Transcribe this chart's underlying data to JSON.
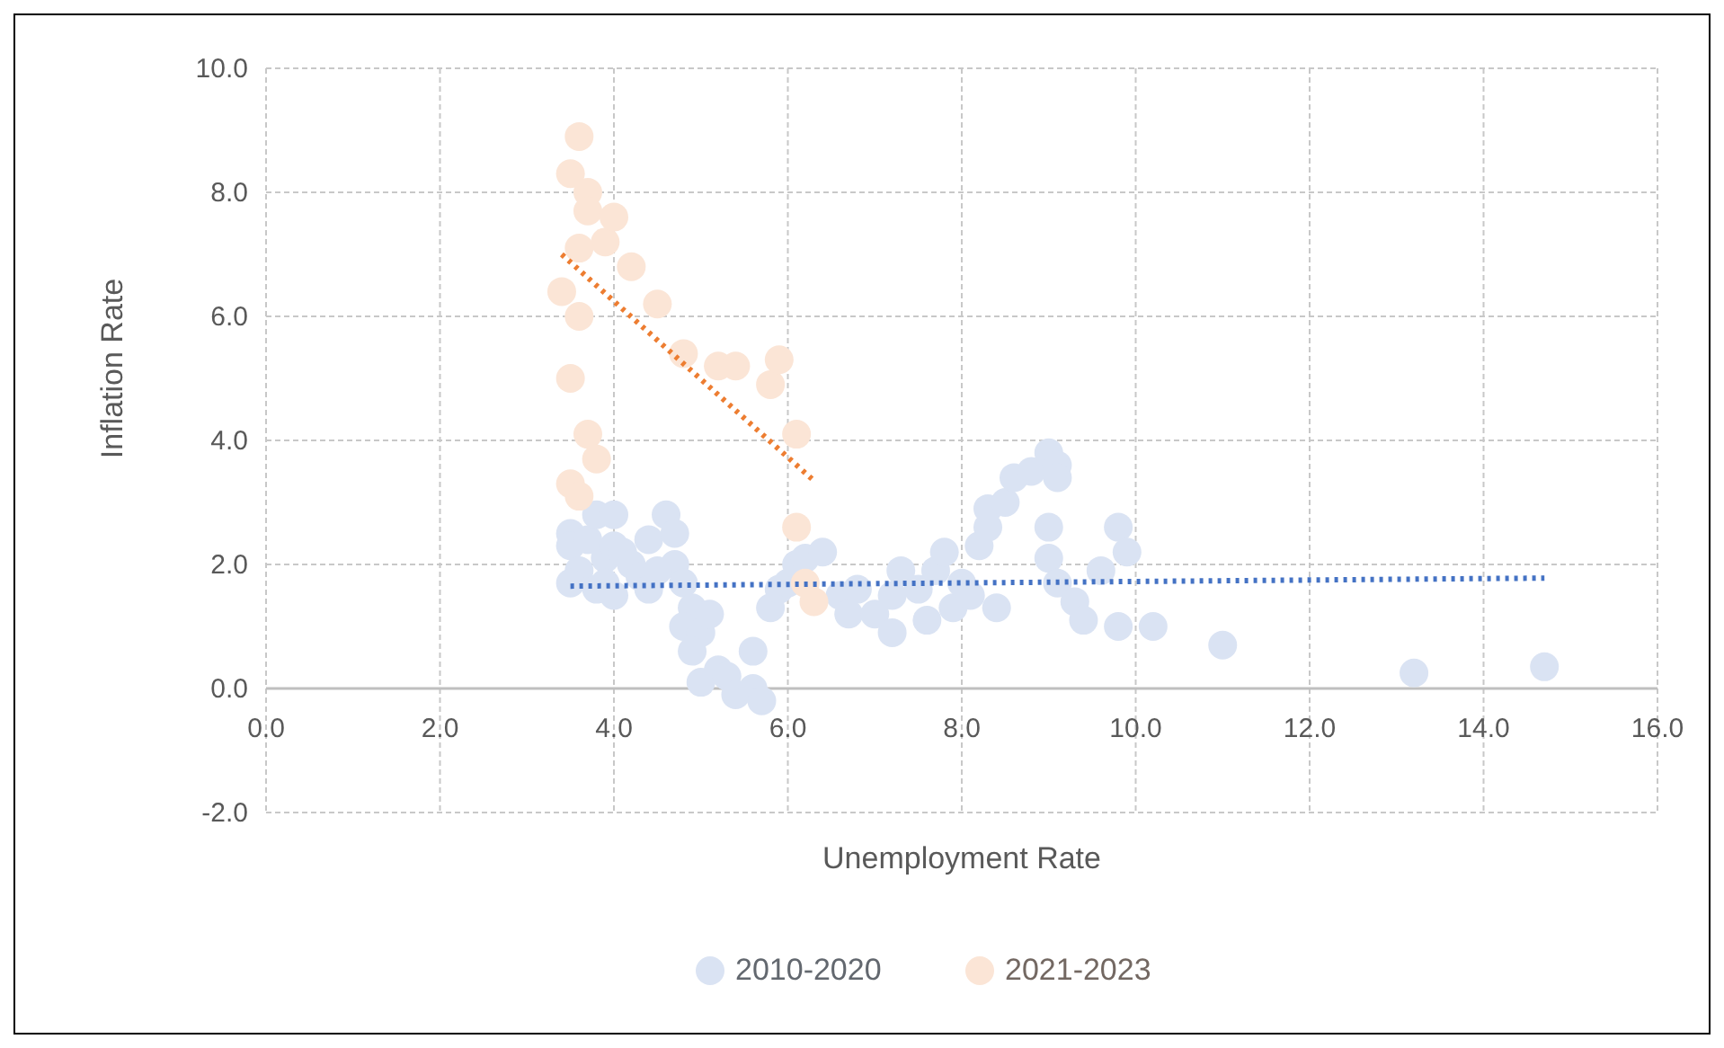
{
  "chart_data": {
    "type": "scatter",
    "xlabel": "Unemployment  Rate",
    "ylabel": "Inflation Rate",
    "xlim": [
      0,
      16
    ],
    "ylim": [
      -2,
      10
    ],
    "xticks": [
      {
        "value": 0,
        "label": "0.0"
      },
      {
        "value": 2,
        "label": "2.0"
      },
      {
        "value": 4,
        "label": "4.0"
      },
      {
        "value": 6,
        "label": "6.0"
      },
      {
        "value": 8,
        "label": "8.0"
      },
      {
        "value": 10,
        "label": "10.0"
      },
      {
        "value": 12,
        "label": "12.0"
      },
      {
        "value": 14,
        "label": "14.0"
      },
      {
        "value": 16,
        "label": "16.0"
      }
    ],
    "yticks": [
      {
        "value": -2,
        "label": "-2.0"
      },
      {
        "value": 0,
        "label": "0.0"
      },
      {
        "value": 2,
        "label": "2.0"
      },
      {
        "value": 4,
        "label": "4.0"
      },
      {
        "value": 6,
        "label": "6.0"
      },
      {
        "value": 8,
        "label": "8.0"
      },
      {
        "value": 10,
        "label": "10.0"
      }
    ],
    "grid": true,
    "legend": "bottom",
    "marker": "circle",
    "series": [
      {
        "name": "2010-2020",
        "color": "#dae3f3",
        "x": [
          3.5,
          3.5,
          3.6,
          3.7,
          3.8,
          3.8,
          3.9,
          3.9,
          4.0,
          4.0,
          4.0,
          4.1,
          4.2,
          4.3,
          4.4,
          4.4,
          4.6,
          4.7,
          4.7,
          4.5,
          4.8,
          4.9,
          4.8,
          5.0,
          5.1,
          4.9,
          5.0,
          5.2,
          5.3,
          5.4,
          5.6,
          5.7,
          5.6,
          5.8,
          5.9,
          6.0,
          6.1,
          6.2,
          6.4,
          6.6,
          6.7,
          6.8,
          7.0,
          7.2,
          7.2,
          7.3,
          7.5,
          7.6,
          7.7,
          7.8,
          7.9,
          8.0,
          8.1,
          8.2,
          8.3,
          8.3,
          8.5,
          8.6,
          8.8,
          9.0,
          9.1,
          9.1,
          9.0,
          9.0,
          9.1,
          9.3,
          9.4,
          9.6,
          9.8,
          9.9,
          9.8,
          10.2,
          11.0,
          13.2,
          14.7,
          3.5,
          8.4
        ],
        "values": [
          2.5,
          2.3,
          1.9,
          2.4,
          2.8,
          1.6,
          2.1,
          1.7,
          2.8,
          2.3,
          1.5,
          2.2,
          2.0,
          1.8,
          2.4,
          1.6,
          2.8,
          2.5,
          2.0,
          1.9,
          1.7,
          1.3,
          1.0,
          0.9,
          1.2,
          0.6,
          0.1,
          0.3,
          0.2,
          -0.1,
          0.0,
          -0.2,
          0.6,
          1.3,
          1.6,
          1.7,
          2.0,
          2.1,
          2.2,
          1.5,
          1.2,
          1.6,
          1.2,
          0.9,
          1.5,
          1.9,
          1.6,
          1.1,
          1.9,
          2.2,
          1.3,
          1.7,
          1.5,
          2.3,
          2.6,
          2.9,
          3.0,
          3.4,
          3.5,
          3.8,
          3.6,
          3.4,
          2.6,
          2.1,
          1.7,
          1.4,
          1.1,
          1.9,
          2.6,
          2.2,
          1.0,
          1.0,
          0.7,
          0.25,
          0.35,
          1.7,
          1.3
        ]
      },
      {
        "name": "2021-2023",
        "color": "#fbe5d6",
        "x": [
          3.6,
          3.5,
          3.7,
          3.7,
          3.9,
          4.0,
          3.6,
          4.2,
          4.5,
          3.4,
          3.6,
          4.8,
          5.2,
          5.4,
          5.8,
          5.9,
          3.5,
          3.7,
          3.8,
          6.1,
          3.5,
          3.6,
          6.1,
          6.2,
          6.3
        ],
        "values": [
          8.9,
          8.3,
          8.0,
          7.7,
          7.2,
          7.6,
          7.1,
          6.8,
          6.2,
          6.4,
          6.0,
          5.4,
          5.2,
          5.2,
          4.9,
          5.3,
          5.0,
          4.1,
          3.7,
          4.1,
          3.3,
          3.1,
          2.6,
          1.7,
          1.4
        ]
      },
      {
        "type": "line",
        "line_style": "dotted",
        "marker": "none",
        "color": "#4472c4",
        "x": [
          3.5,
          14.7
        ],
        "values": [
          1.65,
          1.78
        ]
      },
      {
        "type": "line",
        "line_style": "dotted",
        "marker": "none",
        "color": "#ed7d31",
        "x": [
          3.4,
          6.3
        ],
        "values": [
          7.0,
          3.35
        ]
      }
    ]
  }
}
